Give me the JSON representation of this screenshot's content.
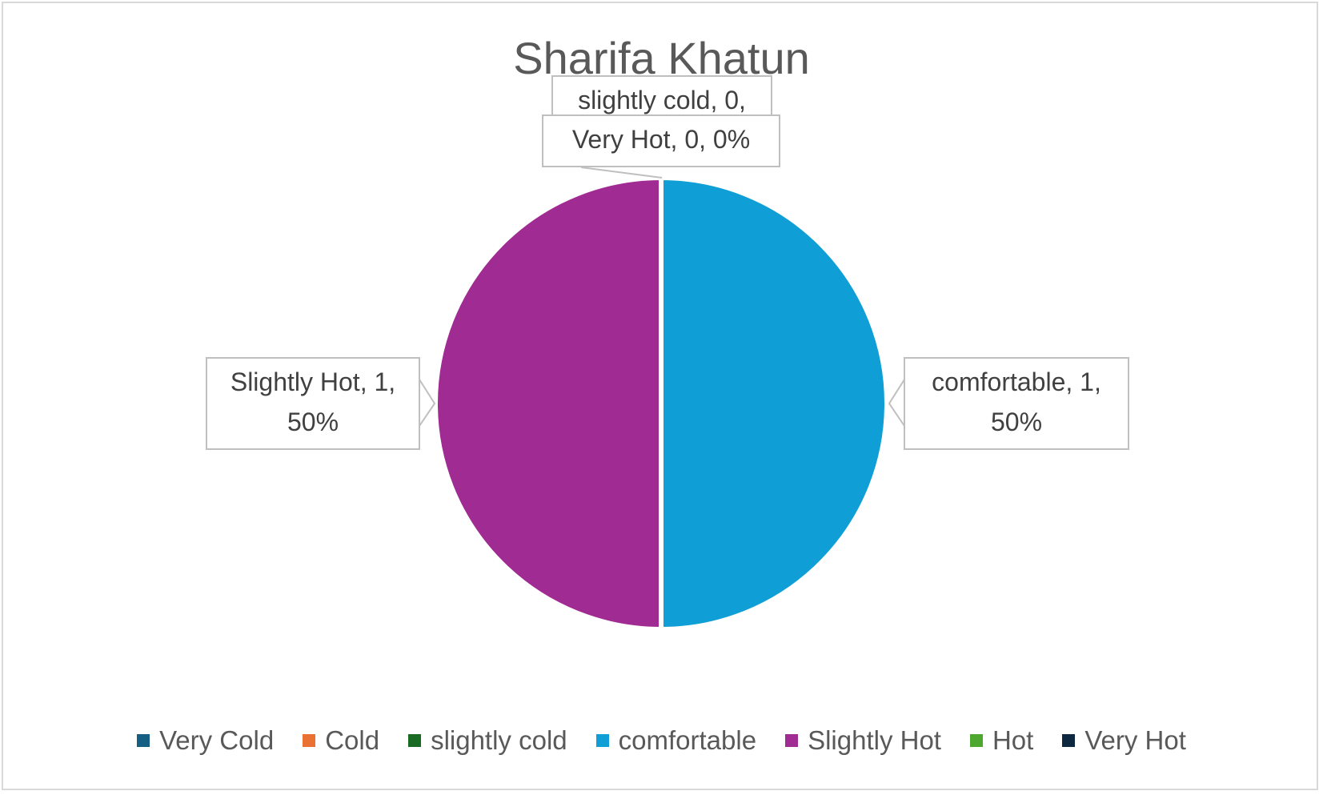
{
  "chart_data": {
    "type": "pie",
    "title": "Sharifa Khatun",
    "legend_position": "bottom",
    "slices": [
      {
        "name": "Very Cold",
        "value": 0,
        "percent": "0%",
        "color": "#156082"
      },
      {
        "name": "Cold",
        "value": 0,
        "percent": "0%",
        "color": "#e97132"
      },
      {
        "name": "slightly cold",
        "value": 0,
        "percent": "0%",
        "color": "#196b24"
      },
      {
        "name": "comfortable",
        "value": 1,
        "percent": "50%",
        "color": "#0f9ed5"
      },
      {
        "name": "Slightly Hot",
        "value": 1,
        "percent": "50%",
        "color": "#a02b93"
      },
      {
        "name": "Hot",
        "value": 0,
        "percent": "0%",
        "color": "#4ea72e"
      },
      {
        "name": "Very Hot",
        "value": 0,
        "percent": "0%",
        "color": "#0e2841"
      }
    ],
    "data_labels": [
      {
        "line1": "slightly cold, 0,",
        "line2": ""
      },
      {
        "line1": "Very Hot, 0, 0%",
        "line2": ""
      },
      {
        "line1": "comfortable, 1,",
        "line2": "50%"
      },
      {
        "line1": "Slightly Hot, 1,",
        "line2": "50%"
      }
    ]
  }
}
